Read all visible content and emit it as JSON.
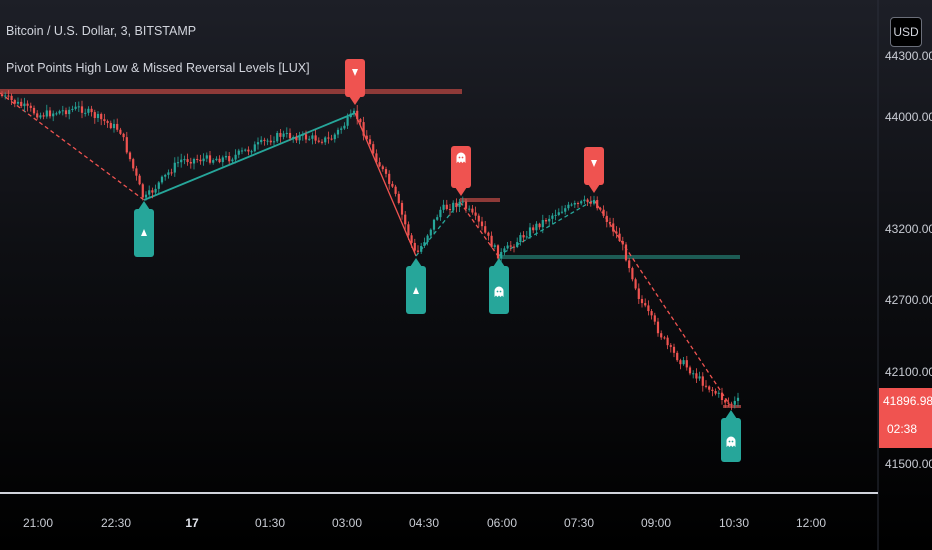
{
  "header": {
    "title": "Bitcoin / U.S. Dollar, 3, BITSTAMP",
    "indicator": "Pivot Points High Low & Missed Reversal Levels [LUX]"
  },
  "currency_button": "USD",
  "price_axis": {
    "labels": [
      "44300.00",
      "44000.00",
      "43200.00",
      "42700.00",
      "42100.00",
      "41500.00"
    ]
  },
  "time_axis": {
    "labels": [
      "21:00",
      "22:30",
      "17",
      "01:30",
      "03:00",
      "04:30",
      "06:00",
      "07:30",
      "09:00",
      "10:30",
      "12:00"
    ]
  },
  "current_price": {
    "value": "41896.98",
    "countdown": "02:38"
  },
  "colors": {
    "bull": "#26a69a",
    "bear": "#ef5350",
    "high_level": "#8e3a38",
    "low_level": "#1d5c55",
    "text": "#d1d4dc"
  },
  "markers": [
    {
      "type": "low",
      "icon": "arrow-up-icon"
    },
    {
      "type": "high",
      "icon": "arrow-down-icon"
    },
    {
      "type": "missed-high",
      "icon": "ghost-icon"
    },
    {
      "type": "low",
      "icon": "arrow-up-icon"
    },
    {
      "type": "missed-low",
      "icon": "ghost-icon"
    },
    {
      "type": "high",
      "icon": "arrow-down-icon"
    },
    {
      "type": "missed-low",
      "icon": "ghost-icon"
    }
  ]
}
